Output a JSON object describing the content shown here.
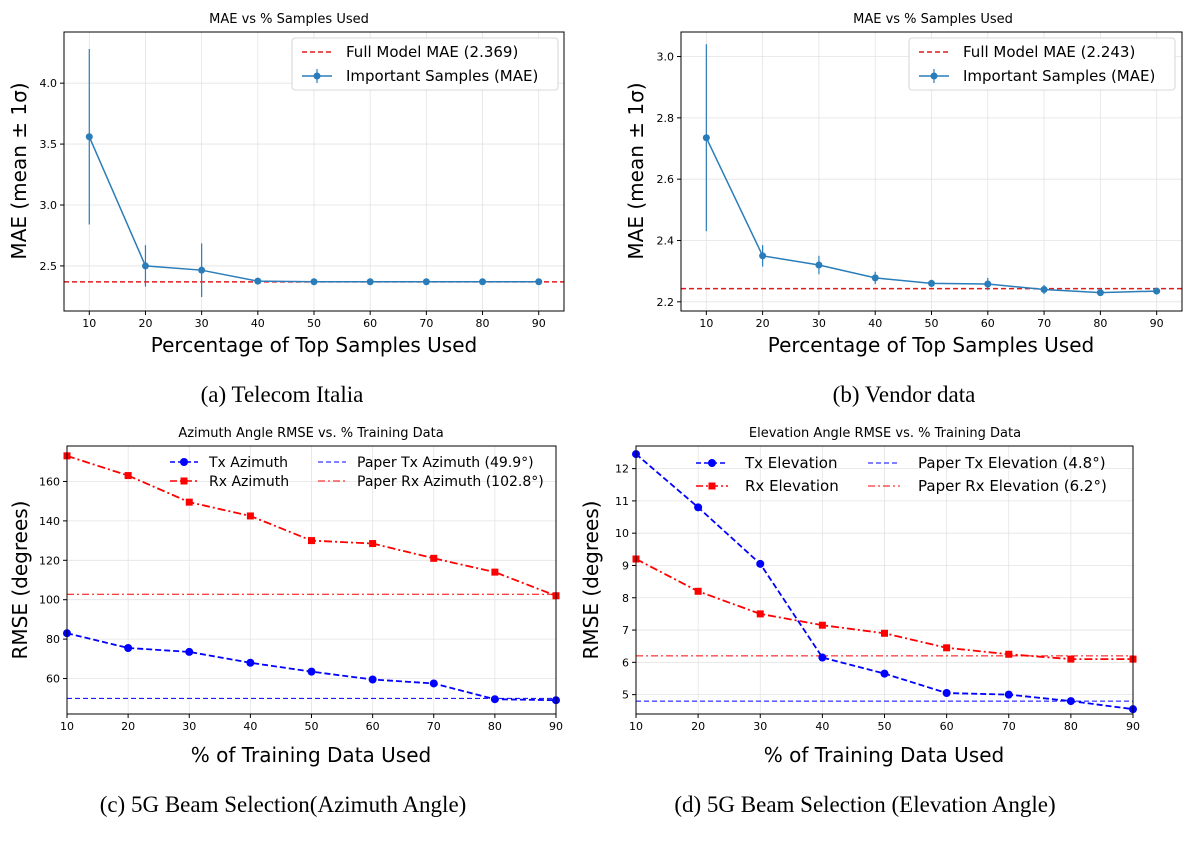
{
  "figure": {
    "captions": {
      "a": "(a) Telecom Italia",
      "b": "(b) Vendor data",
      "c": "(c) 5G Beam Selection(Azimuth Angle)",
      "d": "(d) 5G Beam Selection (Elevation Angle)"
    }
  },
  "colors": {
    "mae_line": "#2a7db8",
    "reference_red": "#e41a1c",
    "tx_blue": "#0000ff",
    "rx_red": "#ff0000"
  },
  "chart_data": [
    {
      "id": "a",
      "type": "line",
      "title": "MAE vs % Samples Used",
      "xlabel": "Percentage of Top Samples Used",
      "ylabel": "MAE (mean ± 1σ)",
      "xlim": [
        5.5,
        94.5
      ],
      "ylim": [
        2.13,
        4.42
      ],
      "xticks": [
        "10",
        "20",
        "30",
        "40",
        "50",
        "60",
        "70",
        "80",
        "90"
      ],
      "yticks": [
        "2.5",
        "3.0",
        "3.5",
        "4.0"
      ],
      "x": [
        10,
        20,
        30,
        40,
        50,
        60,
        70,
        80,
        90
      ],
      "series": [
        {
          "name": "Important Samples (MAE)",
          "values": [
            3.56,
            2.5,
            2.465,
            2.375,
            2.37,
            2.37,
            2.37,
            2.37,
            2.37
          ],
          "errors": [
            0.72,
            0.17,
            0.22,
            0.012,
            0.006,
            0.005,
            0.005,
            0.005,
            0.005
          ]
        }
      ],
      "reference": {
        "name": "Full Model MAE (2.369)",
        "value": 2.369
      },
      "legend": [
        "Full Model MAE (2.369)",
        "Important Samples (MAE)"
      ]
    },
    {
      "id": "b",
      "type": "line",
      "title": "MAE vs % Samples Used",
      "xlabel": "Percentage of Top Samples Used",
      "ylabel": "MAE (mean ± 1σ)",
      "xlim": [
        5.5,
        94.5
      ],
      "ylim": [
        2.17,
        3.08
      ],
      "xticks": [
        "10",
        "20",
        "30",
        "40",
        "50",
        "60",
        "70",
        "80",
        "90"
      ],
      "yticks": [
        "2.2",
        "2.4",
        "2.6",
        "2.8",
        "3.0"
      ],
      "x": [
        10,
        20,
        30,
        40,
        50,
        60,
        70,
        80,
        90
      ],
      "series": [
        {
          "name": "Important Samples (MAE)",
          "values": [
            2.735,
            2.35,
            2.32,
            2.278,
            2.26,
            2.258,
            2.24,
            2.23,
            2.235
          ],
          "errors": [
            0.305,
            0.035,
            0.03,
            0.02,
            0.012,
            0.02,
            0.015,
            0.01,
            0.008
          ]
        }
      ],
      "reference": {
        "name": "Full Model MAE (2.243)",
        "value": 2.243
      },
      "legend": [
        "Full Model MAE (2.243)",
        "Important Samples (MAE)"
      ]
    },
    {
      "id": "c",
      "type": "line",
      "title": "Azimuth Angle RMSE vs. % Training Data",
      "xlabel": "% of Training Data Used",
      "ylabel": "RMSE (degrees)",
      "xlim": [
        10,
        90
      ],
      "ylim": [
        42,
        178
      ],
      "xticks": [
        "10",
        "20",
        "30",
        "40",
        "50",
        "60",
        "70",
        "80",
        "90"
      ],
      "yticks": [
        "60",
        "80",
        "100",
        "120",
        "140",
        "160"
      ],
      "x": [
        10,
        20,
        30,
        40,
        50,
        60,
        70,
        80,
        90
      ],
      "series": [
        {
          "name": "Tx Azimuth",
          "values": [
            83,
            75.5,
            73.5,
            68,
            63.5,
            59.5,
            57.5,
            49.5,
            49
          ]
        },
        {
          "name": "Rx Azimuth",
          "values": [
            173,
            163,
            149.5,
            142.5,
            130,
            128.5,
            121,
            114,
            102
          ]
        }
      ],
      "references": [
        {
          "name": "Paper Tx Azimuth (49.9°)",
          "value": 49.9
        },
        {
          "name": "Paper Rx Azimuth (102.8°)",
          "value": 102.8
        }
      ]
    },
    {
      "id": "d",
      "type": "line",
      "title": "Elevation Angle RMSE vs. % Training Data",
      "xlabel": "% of Training Data Used",
      "ylabel": "RMSE (degrees)",
      "xlim": [
        10,
        90
      ],
      "ylim": [
        4.4,
        12.7
      ],
      "xticks": [
        "10",
        "20",
        "30",
        "40",
        "50",
        "60",
        "70",
        "80",
        "90"
      ],
      "yticks": [
        "5",
        "6",
        "7",
        "8",
        "9",
        "10",
        "11",
        "12"
      ],
      "x": [
        10,
        20,
        30,
        40,
        50,
        60,
        70,
        80,
        90
      ],
      "series": [
        {
          "name": "Tx Elevation",
          "values": [
            12.45,
            10.8,
            9.05,
            6.15,
            5.65,
            5.05,
            5.0,
            4.8,
            4.55
          ]
        },
        {
          "name": "Rx Elevation",
          "values": [
            9.2,
            8.2,
            7.5,
            7.15,
            6.9,
            6.45,
            6.25,
            6.1,
            6.1
          ]
        }
      ],
      "references": [
        {
          "name": "Paper Tx Elevation (4.8°)",
          "value": 4.8
        },
        {
          "name": "Paper Rx Elevation (6.2°)",
          "value": 6.2
        }
      ]
    }
  ]
}
